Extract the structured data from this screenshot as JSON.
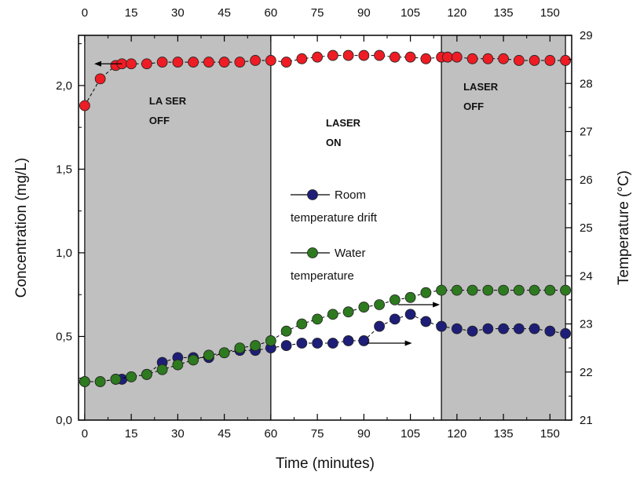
{
  "chart_data": {
    "type": "scatter",
    "title": "",
    "xlabel": "Time (minutes)",
    "ylabel_left": "Concentration (mg/L)",
    "ylabel_right": "Temperature (°C)",
    "xlim": [
      -2,
      157
    ],
    "ylim_left": [
      0.0,
      2.3
    ],
    "ylim_right": [
      21,
      29
    ],
    "x_ticks": [
      0,
      15,
      30,
      45,
      60,
      75,
      90,
      105,
      120,
      135,
      150
    ],
    "x_tick_labels": [
      "0",
      "15",
      "30",
      "45",
      "60",
      "75",
      "90",
      "105",
      "120",
      "135",
      "150"
    ],
    "y_left_ticks": [
      0.0,
      0.5,
      1.0,
      1.5,
      2.0
    ],
    "y_left_tick_labels": [
      "0,0",
      "0,5",
      "1,0",
      "1,5",
      "2,0"
    ],
    "y_right_ticks": [
      21,
      22,
      23,
      24,
      25,
      26,
      27,
      28,
      29
    ],
    "y_right_tick_labels": [
      "21",
      "22",
      "23",
      "24",
      "25",
      "26",
      "27",
      "28",
      "29"
    ],
    "grid": false,
    "shaded_regions": [
      {
        "x_start": 0,
        "x_end": 60,
        "label_lines": [
          "LA SER",
          "OFF"
        ],
        "color": "#c0c0c0"
      },
      {
        "x_start": 115,
        "x_end": 155,
        "label_lines": [
          "LASER",
          "OFF"
        ],
        "color": "#c0c0c0"
      }
    ],
    "region_labels": [
      {
        "label_lines": [
          "LASER",
          "ON"
        ],
        "x": 80
      }
    ],
    "series": [
      {
        "name": "",
        "axis": "left",
        "color": "#ee1c24",
        "x": [
          0,
          5,
          10,
          12,
          15,
          20,
          25,
          30,
          35,
          40,
          45,
          50,
          55,
          60,
          65,
          70,
          75,
          80,
          85,
          90,
          95,
          100,
          105,
          110,
          115,
          117,
          120,
          125,
          130,
          135,
          140,
          145,
          150,
          155
        ],
        "y": [
          1.88,
          2.04,
          2.12,
          2.13,
          2.13,
          2.13,
          2.14,
          2.14,
          2.14,
          2.14,
          2.14,
          2.14,
          2.15,
          2.15,
          2.14,
          2.16,
          2.17,
          2.18,
          2.18,
          2.18,
          2.18,
          2.17,
          2.17,
          2.16,
          2.17,
          2.17,
          2.17,
          2.16,
          2.16,
          2.16,
          2.15,
          2.15,
          2.15,
          2.15
        ]
      },
      {
        "name": "Room temperature drift",
        "legend_lines": [
          "Room",
          "temperature drift"
        ],
        "axis": "right",
        "color": "#1e1e78",
        "x": [
          0,
          5,
          10,
          12,
          15,
          20,
          25,
          30,
          35,
          40,
          45,
          50,
          55,
          60,
          65,
          70,
          75,
          80,
          85,
          90,
          95,
          100,
          105,
          110,
          115,
          120,
          125,
          130,
          135,
          140,
          145,
          150,
          155
        ],
        "y": [
          21.8,
          21.8,
          21.85,
          21.85,
          21.9,
          21.95,
          22.2,
          22.3,
          22.3,
          22.3,
          22.4,
          22.45,
          22.45,
          22.5,
          22.55,
          22.6,
          22.6,
          22.6,
          22.65,
          22.65,
          22.95,
          23.1,
          23.2,
          23.05,
          22.95,
          22.9,
          22.85,
          22.9,
          22.9,
          22.9,
          22.9,
          22.85,
          22.8
        ]
      },
      {
        "name": "Water temperature",
        "legend_lines": [
          "Water",
          "temperature"
        ],
        "axis": "right",
        "color": "#2d7a1f",
        "x": [
          0,
          5,
          10,
          15,
          20,
          25,
          30,
          35,
          40,
          45,
          50,
          55,
          60,
          65,
          70,
          75,
          80,
          85,
          90,
          95,
          100,
          105,
          110,
          115,
          120,
          125,
          130,
          135,
          140,
          145,
          150,
          155
        ],
        "y": [
          21.8,
          21.8,
          21.85,
          21.9,
          21.95,
          22.05,
          22.15,
          22.25,
          22.35,
          22.4,
          22.5,
          22.55,
          22.65,
          22.85,
          23.0,
          23.1,
          23.2,
          23.25,
          23.35,
          23.4,
          23.5,
          23.55,
          23.65,
          23.7,
          23.7,
          23.7,
          23.7,
          23.7,
          23.7,
          23.7,
          23.7,
          23.7
        ]
      }
    ],
    "annotation_arrows": [
      {
        "series_index": 0,
        "direction": "left",
        "axis": "left",
        "y": 2.13
      },
      {
        "series_index": 1,
        "direction": "right",
        "axis": "right",
        "y": 22.6
      },
      {
        "series_index": 2,
        "direction": "right",
        "axis": "right",
        "y": 23.4
      }
    ]
  }
}
